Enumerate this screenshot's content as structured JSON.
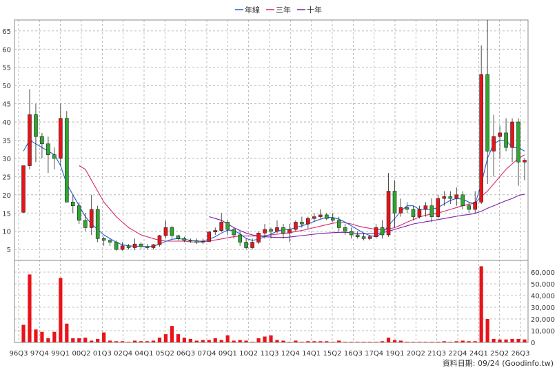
{
  "chart_data": {
    "type": "candlestick",
    "legend": [
      {
        "label": "年線",
        "color": "#1f5fd6"
      },
      {
        "label": "三年",
        "color": "#d6286f"
      },
      {
        "label": "十年",
        "color": "#7a1fa8"
      }
    ],
    "x_tick_labels": [
      "96Q3",
      "97Q4",
      "99Q1",
      "00Q2",
      "01Q3",
      "02Q4",
      "04Q1",
      "05Q2",
      "06Q3",
      "07Q4",
      "09Q1",
      "10Q2",
      "11Q3",
      "12Q4",
      "14Q1",
      "15Q2",
      "16Q3",
      "17Q4",
      "19Q1",
      "20Q2",
      "21Q3",
      "22Q4",
      "24Q1",
      "25Q2",
      "26Q3"
    ],
    "price_axis": {
      "ticks": [
        5,
        10,
        15,
        20,
        25,
        30,
        35,
        40,
        45,
        50,
        55,
        60,
        65
      ],
      "range": [
        2,
        68
      ]
    },
    "volume_axis": {
      "ticks": [
        "60,000",
        "50,000",
        "40,000",
        "30,000",
        "20,000",
        "10,000",
        "0"
      ],
      "range": [
        0,
        70000
      ]
    },
    "candles": [
      [
        15.2,
        28,
        15,
        28
      ],
      [
        28,
        49,
        27,
        42
      ],
      [
        42,
        45,
        29,
        36
      ],
      [
        36,
        37,
        30,
        34
      ],
      [
        34,
        36,
        26,
        31
      ],
      [
        31,
        33,
        27,
        30
      ],
      [
        30,
        45,
        28,
        41
      ],
      [
        41,
        43,
        18,
        18
      ],
      [
        18,
        20,
        15,
        17
      ],
      [
        17,
        18,
        12,
        13
      ],
      [
        13,
        15,
        10,
        11
      ],
      [
        11,
        20,
        9,
        16
      ],
      [
        16,
        17,
        7,
        8
      ],
      [
        8,
        8.5,
        6,
        7.5
      ],
      [
        7.5,
        8,
        6,
        7
      ],
      [
        7,
        7.5,
        4.7,
        5
      ],
      [
        5,
        7,
        4.7,
        6
      ],
      [
        6,
        6.5,
        5,
        5.5
      ],
      [
        5.5,
        8,
        4.8,
        6.5
      ],
      [
        6.5,
        7,
        5,
        5.8
      ],
      [
        5.8,
        6.5,
        5,
        5.5
      ],
      [
        5.5,
        6.5,
        5,
        6.3
      ],
      [
        6.3,
        9,
        5.8,
        8.8
      ],
      [
        8.8,
        13,
        8,
        11
      ],
      [
        11,
        11.5,
        8,
        8.8
      ],
      [
        8.8,
        9,
        7.5,
        8
      ],
      [
        8,
        8.5,
        7,
        7.5
      ],
      [
        7.5,
        8,
        6.8,
        7.4
      ],
      [
        7.4,
        8,
        6.5,
        7
      ],
      [
        7,
        8,
        6.5,
        7.2
      ],
      [
        7.2,
        10,
        7,
        9.8
      ],
      [
        9.8,
        11,
        9,
        10.2
      ],
      [
        10.2,
        15,
        9.8,
        12.5
      ],
      [
        12.5,
        13,
        9,
        10.5
      ],
      [
        10.5,
        11,
        8,
        9
      ],
      [
        9,
        10,
        6,
        7
      ],
      [
        7,
        8,
        5,
        5.5
      ],
      [
        5.5,
        8,
        5,
        7
      ],
      [
        7,
        10,
        6.5,
        9.5
      ],
      [
        9.5,
        12,
        8,
        10.5
      ],
      [
        10.5,
        11,
        8,
        10
      ],
      [
        10,
        13,
        9.5,
        11
      ],
      [
        11,
        12,
        8,
        9.5
      ],
      [
        9.5,
        12,
        7,
        10.5
      ],
      [
        10.5,
        13,
        10,
        12.5
      ],
      [
        12.5,
        14,
        11,
        12
      ],
      [
        12,
        14,
        10.5,
        13.5
      ],
      [
        13.5,
        15,
        12.5,
        14
      ],
      [
        14,
        16,
        13.5,
        14.5
      ],
      [
        14.5,
        15,
        13,
        13.5
      ],
      [
        13.5,
        15,
        12.5,
        13
      ],
      [
        13,
        14,
        10,
        11
      ],
      [
        11,
        12,
        9,
        10
      ],
      [
        10,
        11,
        8,
        9
      ],
      [
        9,
        10,
        8,
        8.5
      ],
      [
        8.5,
        9.5,
        7.5,
        8
      ],
      [
        8,
        9,
        7.5,
        8.5
      ],
      [
        8.5,
        12,
        8,
        11
      ],
      [
        11,
        13,
        8,
        9
      ],
      [
        9,
        26,
        8.5,
        21
      ],
      [
        21,
        24,
        11,
        15
      ],
      [
        15,
        19,
        14,
        16.5
      ],
      [
        16.5,
        18,
        15,
        16
      ],
      [
        16,
        17,
        13,
        14
      ],
      [
        14,
        17,
        13.5,
        16
      ],
      [
        16,
        18,
        14,
        17
      ],
      [
        17,
        19,
        12.5,
        14
      ],
      [
        14,
        20,
        13.5,
        19
      ],
      [
        19,
        21,
        17,
        19.5
      ],
      [
        19.5,
        21,
        17.5,
        19
      ],
      [
        19,
        22,
        17,
        20
      ],
      [
        20,
        21,
        16,
        17
      ],
      [
        17,
        18,
        15,
        16
      ],
      [
        16,
        21,
        15,
        18
      ],
      [
        18,
        61,
        17.5,
        53
      ],
      [
        53,
        68,
        23,
        32
      ],
      [
        32,
        42,
        25,
        36
      ],
      [
        36,
        39,
        30,
        37
      ],
      [
        37,
        41,
        32,
        33
      ],
      [
        33,
        41,
        29,
        40
      ],
      [
        40,
        41,
        22.5,
        29
      ],
      [
        29,
        30,
        24,
        29.5
      ]
    ],
    "year_line": [
      32,
      35,
      34,
      33,
      32,
      31,
      28,
      23,
      20,
      17,
      14,
      12,
      10.5,
      9,
      8,
      7,
      6.3,
      6,
      5.9,
      5.9,
      5.8,
      5.9,
      6.5,
      7.2,
      7.8,
      8,
      7.8,
      7.5,
      7.3,
      7.3,
      7.8,
      8.5,
      9.5,
      10.3,
      10.2,
      9.3,
      8,
      7.5,
      7.8,
      8.5,
      9.2,
      10,
      10.5,
      10.5,
      11,
      11.5,
      12,
      12.7,
      13.3,
      13.8,
      13.8,
      13.3,
      12.5,
      11.5,
      10.5,
      9.5,
      8.8,
      8.5,
      9.5,
      11.5,
      13.5,
      15.5,
      17,
      17,
      16,
      16,
      16,
      16.5,
      17.5,
      18.5,
      19,
      18.8,
      18,
      17.5,
      23,
      30,
      34,
      35,
      35,
      33,
      33,
      32
    ],
    "three_line": [
      null,
      null,
      null,
      null,
      null,
      null,
      null,
      null,
      null,
      28,
      27,
      24,
      21,
      18,
      16,
      14,
      12.5,
      11,
      10,
      9,
      8.5,
      8,
      7.5,
      7.3,
      7.3,
      7.3,
      7.3,
      7.1,
      7,
      7.1,
      7.3,
      7.6,
      7.9,
      8.2,
      8.5,
      8.7,
      8.7,
      8.7,
      8.7,
      8.8,
      9,
      9.2,
      9.4,
      9.6,
      9.9,
      10.2,
      10.6,
      11,
      11.4,
      11.8,
      12.2,
      12.4,
      12.3,
      12,
      11.5,
      11.1,
      10.8,
      10.5,
      10.4,
      10.6,
      11,
      11.7,
      12.5,
      13.2,
      13.9,
      14.4,
      14.7,
      15,
      15.5,
      16,
      16.5,
      17,
      17.4,
      17.7,
      19.5,
      21,
      23,
      25,
      27,
      28.5,
      30,
      31
    ],
    "ten_line": [
      null,
      null,
      null,
      null,
      null,
      null,
      null,
      null,
      null,
      null,
      null,
      null,
      null,
      null,
      null,
      null,
      null,
      null,
      null,
      null,
      null,
      null,
      null,
      null,
      null,
      null,
      null,
      null,
      null,
      null,
      14,
      13.5,
      13,
      12,
      11,
      10.2,
      9.5,
      9,
      8.7,
      8.5,
      8.4,
      8.3,
      8.3,
      8.4,
      8.6,
      8.8,
      9,
      9.2,
      9.4,
      9.5,
      9.6,
      9.7,
      9.7,
      9.6,
      9.4,
      9.3,
      9.3,
      9.4,
      9.6,
      10,
      10.5,
      11,
      11.5,
      12,
      12.3,
      12.6,
      12.9,
      13.2,
      13.5,
      13.8,
      14.1,
      14.4,
      14.6,
      14.9,
      15.5,
      16.3,
      17,
      17.7,
      18.4,
      19,
      19.8,
      20.2
    ],
    "volumes": [
      15000,
      58000,
      11000,
      9000,
      3500,
      9000,
      55000,
      16000,
      3500,
      3500,
      4000,
      1500,
      3000,
      8500,
      1500,
      1000,
      1000,
      500,
      1500,
      1000,
      1000,
      1500,
      4000,
      7000,
      14000,
      7000,
      4000,
      3000,
      1500,
      2000,
      2000,
      3500,
      2000,
      6000,
      1500,
      2000,
      1500,
      500,
      3500,
      5000,
      6000,
      2000,
      1500,
      500,
      1500,
      500,
      1000,
      1000,
      1000,
      1000,
      500,
      1500,
      500,
      500,
      500,
      500,
      500,
      500,
      1000,
      4000,
      2000,
      1500,
      500,
      500,
      500,
      500,
      500,
      500,
      1000,
      500,
      1000,
      1500,
      1000,
      1000,
      65000,
      20000,
      3000,
      2500,
      2500,
      3000,
      3000,
      2500
    ],
    "volume_color": "#e8141a",
    "up_color": "#e8141a",
    "down_color": "#2ea82e"
  },
  "credit": "資料日期: 09/24  (Goodinfo.tw)"
}
